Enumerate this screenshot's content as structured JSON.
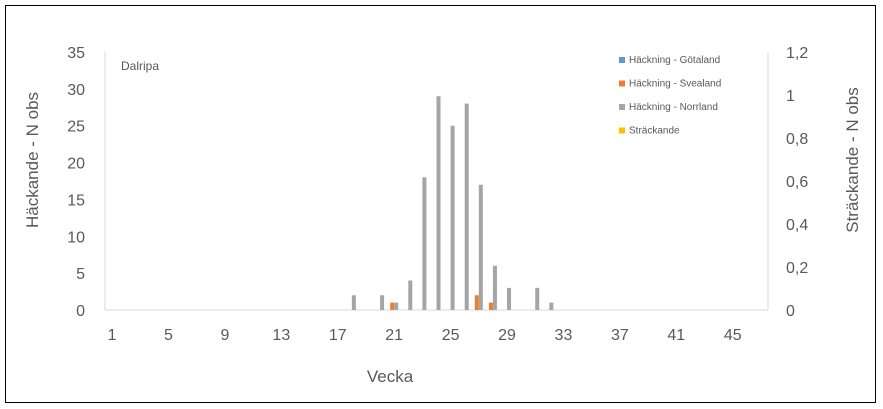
{
  "chart_data": {
    "type": "bar",
    "title": "Dalripa",
    "xlabel": "Vecka",
    "ylabel": "Häckande - N obs",
    "y2label": "Sträckande - N obs",
    "x": [
      1,
      2,
      3,
      4,
      5,
      6,
      7,
      8,
      9,
      10,
      11,
      12,
      13,
      14,
      15,
      16,
      17,
      18,
      19,
      20,
      21,
      22,
      23,
      24,
      25,
      26,
      27,
      28,
      29,
      30,
      31,
      32,
      33,
      34,
      35,
      36,
      37,
      38,
      39,
      40,
      41,
      42,
      43,
      44,
      45,
      46,
      47
    ],
    "xticks": [
      "1",
      "5",
      "9",
      "13",
      "17",
      "21",
      "25",
      "29",
      "33",
      "37",
      "41",
      "45"
    ],
    "ylim": [
      0,
      35
    ],
    "yticks": [
      "0",
      "5",
      "10",
      "15",
      "20",
      "25",
      "30",
      "35"
    ],
    "y2lim": [
      0,
      1.2
    ],
    "y2ticks": [
      "0",
      "0,2",
      "0,4",
      "0,6",
      "0,8",
      "1",
      "1,2"
    ],
    "legend_position": "top-right",
    "series": [
      {
        "name": "Häckning - Götaland",
        "color": "#5B9BD5",
        "axis": "left",
        "values": {}
      },
      {
        "name": "Häckning - Svealand",
        "color": "#ED7D31",
        "axis": "left",
        "values": {
          "21": 1,
          "27": 2,
          "28": 1
        }
      },
      {
        "name": "Häckning - Norrland",
        "color": "#A5A5A5",
        "axis": "left",
        "values": {
          "18": 2,
          "20": 2,
          "21": 1,
          "22": 4,
          "23": 18,
          "24": 29,
          "25": 25,
          "26": 28,
          "27": 17,
          "28": 6,
          "29": 3,
          "31": 3,
          "32": 1
        }
      },
      {
        "name": "Sträckande",
        "color": "#FFC000",
        "axis": "right",
        "values": {}
      }
    ]
  }
}
